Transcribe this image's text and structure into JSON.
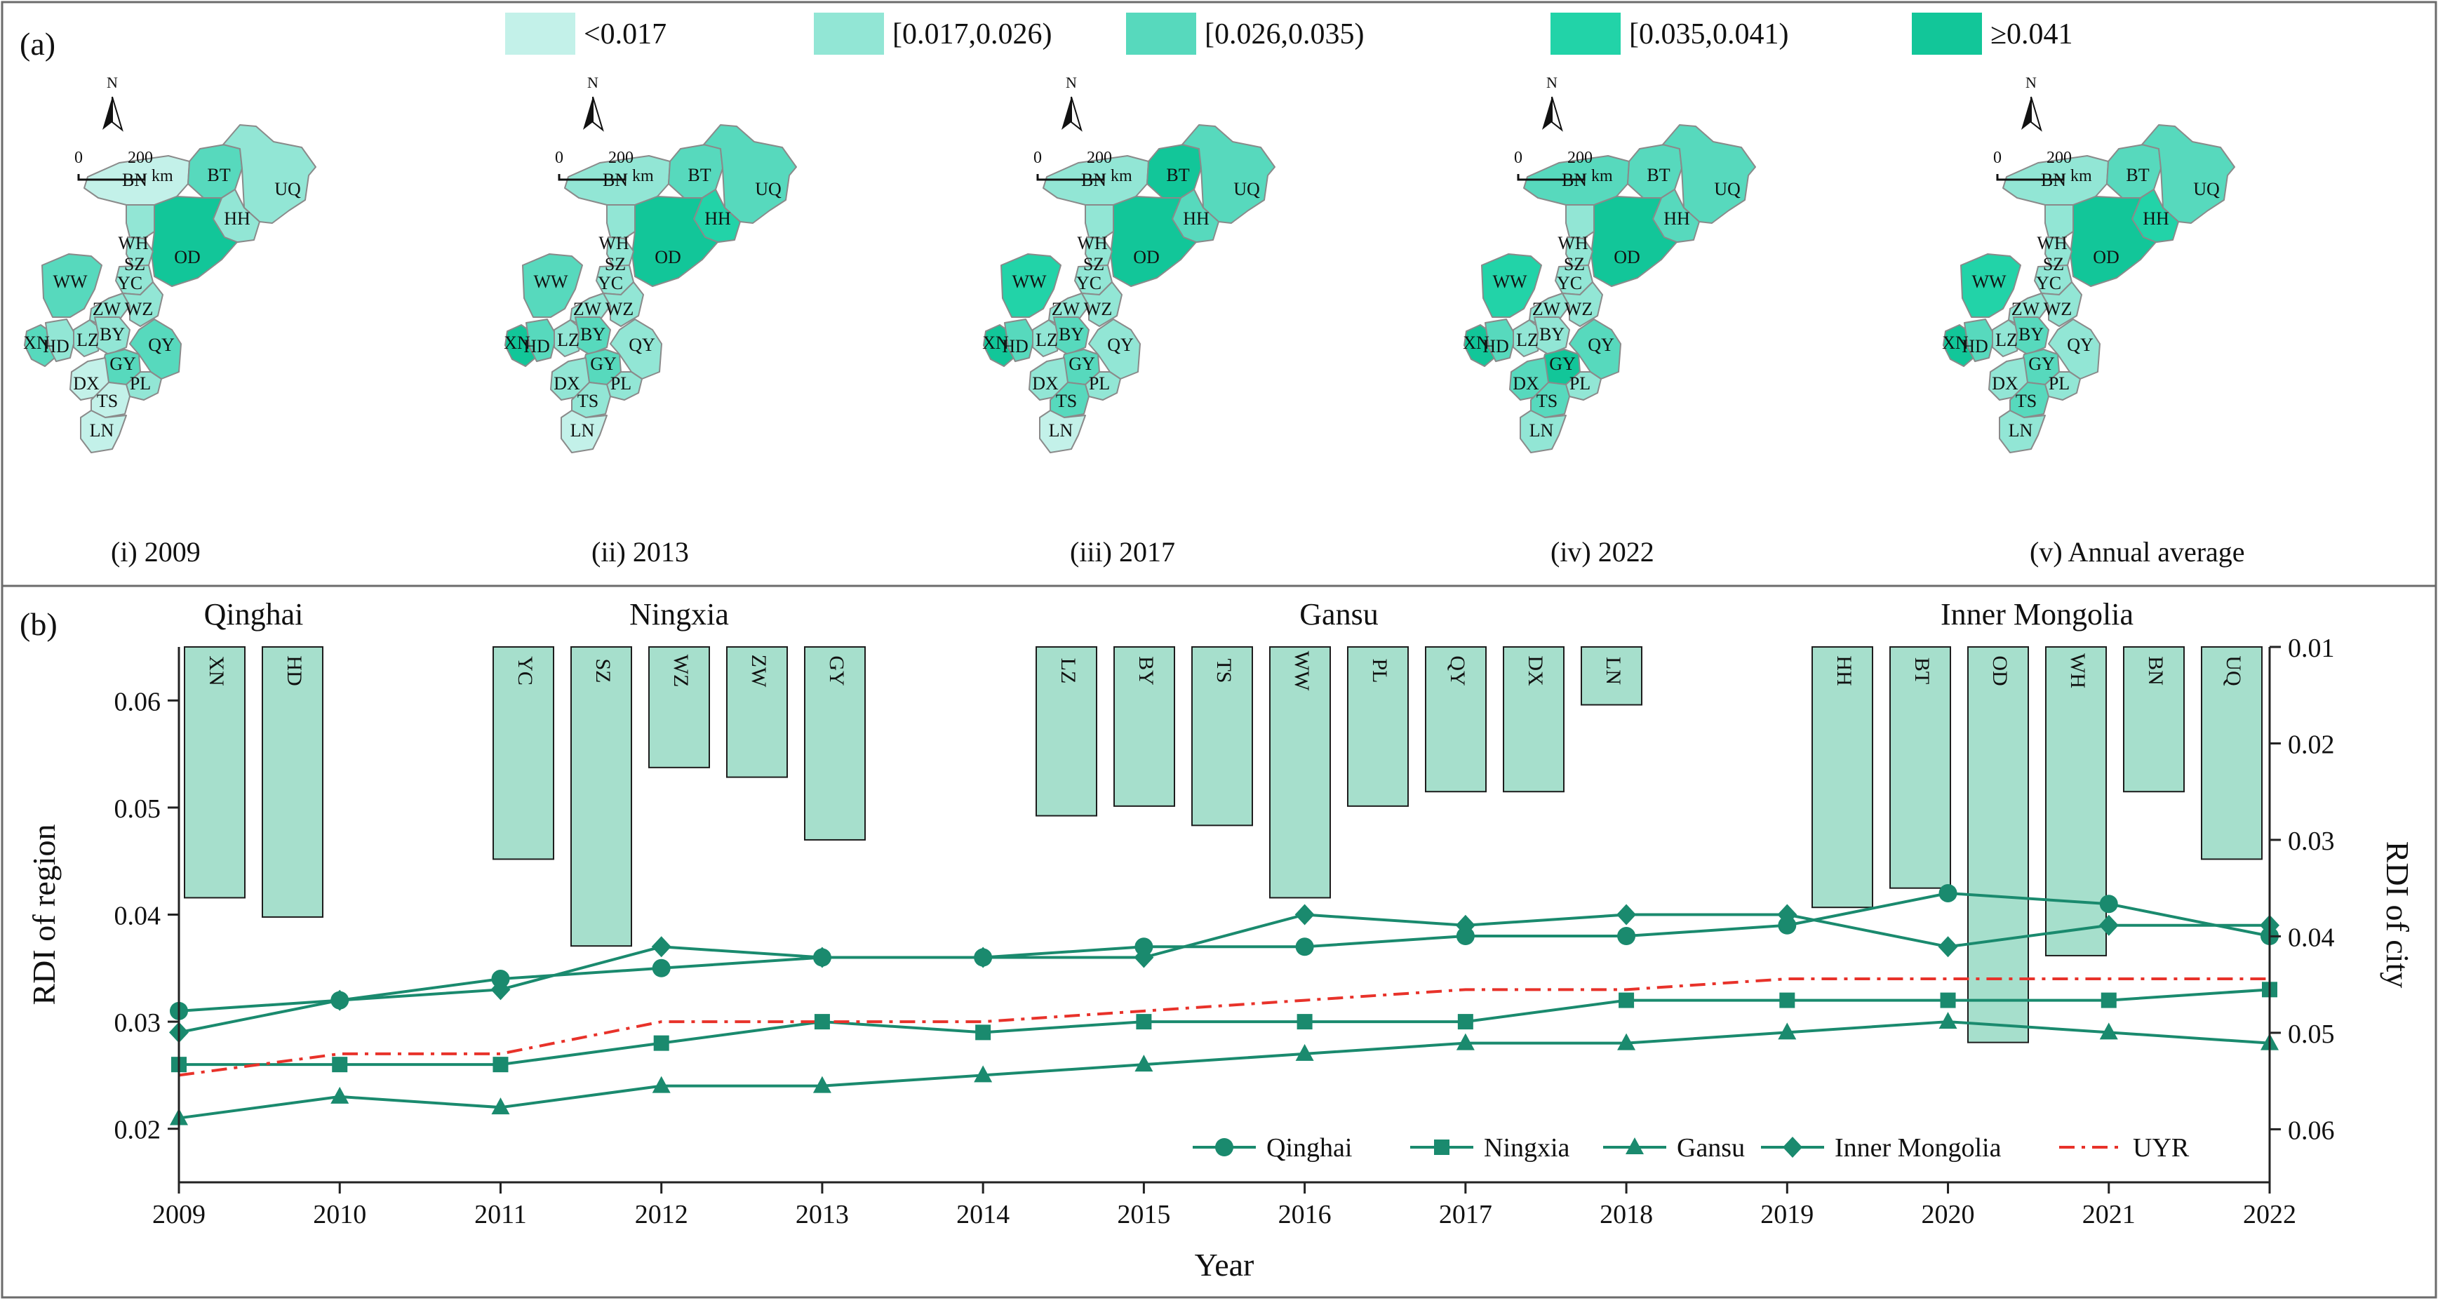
{
  "panel_a": {
    "label": "(a)",
    "legend": [
      {
        "label": "<0.017",
        "color": "#c3f1e9"
      },
      {
        "label": "[0.017,0.026)",
        "color": "#92e6d5"
      },
      {
        "label": "[0.026,0.035)",
        "color": "#57d9bd"
      },
      {
        "label": "[0.035,0.041)",
        "color": "#22d3a8"
      },
      {
        "label": "≥0.041",
        "color": "#12c699"
      }
    ],
    "north_label": "N",
    "scale_bar": {
      "zero": "0",
      "distance": "200",
      "unit": "km"
    },
    "regions": [
      "BN",
      "BT",
      "UQ",
      "HH",
      "OD",
      "WH",
      "SZ",
      "YC",
      "WW",
      "XN",
      "ZW",
      "WZ",
      "HD",
      "LZ",
      "BY",
      "GY",
      "QY",
      "PL",
      "DX",
      "TS",
      "LN"
    ],
    "maps": [
      {
        "caption": "(i)  2009",
        "classes": {
          "BN": 0,
          "BT": 2,
          "UQ": 1,
          "HH": 1,
          "OD": 4,
          "WH": 1,
          "SZ": 1,
          "YC": 1,
          "WW": 2,
          "XN": 2,
          "ZW": 1,
          "WZ": 1,
          "HD": 1,
          "LZ": 1,
          "BY": 1,
          "GY": 2,
          "QY": 2,
          "PL": 1,
          "DX": 0,
          "TS": 0,
          "LN": 0
        }
      },
      {
        "caption": "(ii)  2013",
        "classes": {
          "BN": 1,
          "BT": 2,
          "UQ": 2,
          "HH": 3,
          "OD": 4,
          "WH": 1,
          "SZ": 1,
          "YC": 1,
          "WW": 2,
          "XN": 4,
          "ZW": 1,
          "WZ": 1,
          "HD": 2,
          "LZ": 1,
          "BY": 2,
          "GY": 2,
          "QY": 1,
          "PL": 1,
          "DX": 1,
          "TS": 1,
          "LN": 0
        }
      },
      {
        "caption": "(iii)  2017",
        "classes": {
          "BN": 1,
          "BT": 4,
          "UQ": 2,
          "HH": 2,
          "OD": 4,
          "WH": 1,
          "SZ": 1,
          "YC": 1,
          "WW": 3,
          "XN": 4,
          "ZW": 1,
          "WZ": 1,
          "HD": 2,
          "LZ": 1,
          "BY": 2,
          "GY": 2,
          "QY": 1,
          "PL": 1,
          "DX": 1,
          "TS": 2,
          "LN": 0
        }
      },
      {
        "caption": "(iv)  2022",
        "classes": {
          "BN": 2,
          "BT": 2,
          "UQ": 2,
          "HH": 2,
          "OD": 4,
          "WH": 1,
          "SZ": 1,
          "YC": 1,
          "WW": 3,
          "XN": 4,
          "ZW": 1,
          "WZ": 1,
          "HD": 2,
          "LZ": 1,
          "BY": 1,
          "GY": 4,
          "QY": 2,
          "PL": 1,
          "DX": 2,
          "TS": 2,
          "LN": 1
        }
      },
      {
        "caption": "(v)  Annual average",
        "classes": {
          "BN": 1,
          "BT": 2,
          "UQ": 2,
          "HH": 3,
          "OD": 4,
          "WH": 1,
          "SZ": 1,
          "YC": 1,
          "WW": 3,
          "XN": 4,
          "ZW": 1,
          "WZ": 1,
          "HD": 2,
          "LZ": 1,
          "BY": 2,
          "GY": 2,
          "QY": 1,
          "PL": 1,
          "DX": 1,
          "TS": 2,
          "LN": 1
        }
      }
    ]
  },
  "chart_data": {
    "type": "line",
    "panel_label": "(b)",
    "xlabel": "Year",
    "ylabel": "RDI of region",
    "y2label": "RDI of city",
    "x": [
      2009,
      2010,
      2011,
      2012,
      2013,
      2014,
      2015,
      2016,
      2017,
      2018,
      2019,
      2020,
      2021,
      2022
    ],
    "xlim": [
      2009,
      2022
    ],
    "ylim": [
      0.015,
      0.065
    ],
    "yticks": [
      0.02,
      0.03,
      0.04,
      0.05,
      0.06
    ],
    "y2lim": [
      0.01,
      0.0655
    ],
    "y2ticks": [
      0.01,
      0.02,
      0.03,
      0.04,
      0.05,
      0.06
    ],
    "y2_inverted": true,
    "grid": false,
    "legend_position": "bottom-right",
    "series": [
      {
        "name": "Qinghai",
        "marker": "circle",
        "color": "#1a8a6e",
        "values": [
          0.031,
          0.032,
          0.034,
          0.035,
          0.036,
          0.036,
          0.037,
          0.037,
          0.038,
          0.038,
          0.039,
          0.042,
          0.041,
          0.038
        ]
      },
      {
        "name": "Ningxia",
        "marker": "square",
        "color": "#1a8a6e",
        "values": [
          0.026,
          0.026,
          0.026,
          0.028,
          0.03,
          0.029,
          0.03,
          0.03,
          0.03,
          0.032,
          0.032,
          0.032,
          0.032,
          0.033
        ]
      },
      {
        "name": "Gansu",
        "marker": "triangle",
        "color": "#1a8a6e",
        "values": [
          0.021,
          0.023,
          0.022,
          0.024,
          0.024,
          0.025,
          0.026,
          0.027,
          0.028,
          0.028,
          0.029,
          0.03,
          0.029,
          0.028
        ]
      },
      {
        "name": "Inner Mongolia",
        "marker": "diamond",
        "color": "#1a8a6e",
        "values": [
          0.029,
          0.032,
          0.033,
          0.037,
          0.036,
          0.036,
          0.036,
          0.04,
          0.039,
          0.04,
          0.04,
          0.037,
          0.039,
          0.039
        ]
      },
      {
        "name": "UYR",
        "marker": "none",
        "dash": "dashdot",
        "color": "#e8322a",
        "values": [
          0.025,
          0.027,
          0.027,
          0.03,
          0.03,
          0.03,
          0.031,
          0.032,
          0.033,
          0.033,
          0.034,
          0.034,
          0.034,
          0.034
        ]
      }
    ],
    "city_bars": {
      "color": "#a6dfcc",
      "groups": [
        {
          "province": "Qinghai",
          "cities": [
            {
              "code": "XN",
              "value": 0.036
            },
            {
              "code": "HD",
              "value": 0.038
            }
          ]
        },
        {
          "province": "Ningxia",
          "cities": [
            {
              "code": "YC",
              "value": 0.032
            },
            {
              "code": "SZ",
              "value": 0.041
            },
            {
              "code": "WZ",
              "value": 0.0225
            },
            {
              "code": "ZW",
              "value": 0.0235
            },
            {
              "code": "GY",
              "value": 0.03
            }
          ]
        },
        {
          "province": "Gansu",
          "cities": [
            {
              "code": "LZ",
              "value": 0.0275
            },
            {
              "code": "BY",
              "value": 0.0265
            },
            {
              "code": "TS",
              "value": 0.0285
            },
            {
              "code": "WW",
              "value": 0.036
            },
            {
              "code": "PL",
              "value": 0.0265
            },
            {
              "code": "QY",
              "value": 0.025
            },
            {
              "code": "DX",
              "value": 0.025
            },
            {
              "code": "LN",
              "value": 0.016
            }
          ]
        },
        {
          "province": "Inner Mongolia",
          "cities": [
            {
              "code": "HH",
              "value": 0.037
            },
            {
              "code": "BT",
              "value": 0.035
            },
            {
              "code": "OD",
              "value": 0.051
            },
            {
              "code": "WH",
              "value": 0.042
            },
            {
              "code": "BN",
              "value": 0.025
            },
            {
              "code": "UQ",
              "value": 0.032
            }
          ]
        }
      ]
    }
  }
}
